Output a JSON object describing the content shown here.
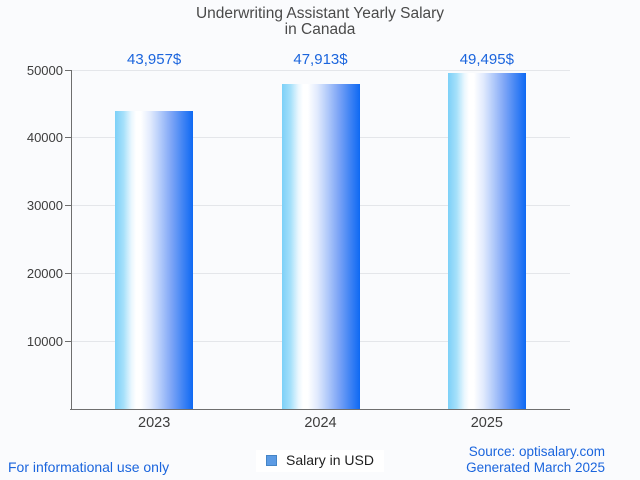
{
  "title": {
    "line1": "Underwriting Assistant Yearly Salary",
    "line2": "in Canada"
  },
  "chart_data": {
    "type": "bar",
    "categories": [
      "2023",
      "2024",
      "2025"
    ],
    "values": [
      43957,
      47913,
      49495
    ],
    "value_labels": [
      "43,957$",
      "47,913$",
      "49,495$"
    ],
    "series_name": "Salary in USD",
    "title": "Underwriting Assistant Yearly Salary in Canada",
    "xlabel": "",
    "ylabel": "",
    "ylim": [
      0,
      50000
    ],
    "yticks": [
      10000,
      20000,
      30000,
      40000,
      50000
    ],
    "ytick_labels": [
      "10000",
      "20000",
      "30000",
      "40000",
      "50000"
    ],
    "grid": true,
    "legend_position": "bottom"
  },
  "legend": {
    "label": "Salary in USD"
  },
  "footer": {
    "left": "For informational use only",
    "source": "Source: optisalary.com",
    "generated": "Generated March 2025"
  },
  "colors": {
    "background": "#fafbfd",
    "title_text": "#4a4a4a",
    "axis_text": "#3d3d3d",
    "accent_blue": "#1b65dd",
    "axis_line": "#6e6e6e",
    "grid_line": "#e4e6ea",
    "legend_swatch_fill": "#5c9be4",
    "legend_swatch_border": "#4585c6",
    "bar_gradient_stops": [
      "#7cd0f8 0%",
      "#a5e0fa 11%",
      "#eaf7fe 21%",
      "#ffffff 27%",
      "#ffffff 33%",
      "#e2ebfd 45%",
      "#b3cbfa 58%",
      "#7fa6f6 72%",
      "#3d82f4 88%",
      "#0e69f3 100%"
    ]
  }
}
